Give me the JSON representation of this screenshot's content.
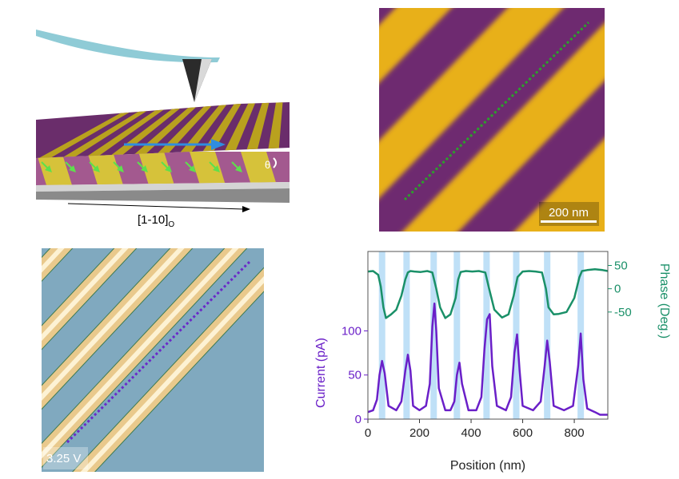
{
  "schematic": {
    "direction_label": "[1-10]",
    "direction_subscript": "O",
    "angle_label": "θ",
    "colors": {
      "cantilever": "#8fcbd6",
      "tip": "#2a2a2a",
      "stripe_a": "#b9a11e",
      "stripe_b": "#6a2d6b",
      "arrow": "#2f8de0",
      "polar_arrow": "#5ee04c",
      "substrate": "#bfbfbf",
      "substrate_dark": "#8a8a8a"
    }
  },
  "pfm_map": {
    "scale_bar_label": "200 nm",
    "colors": {
      "domain_light": "#e8b019",
      "domain_dark": "#6e2a6f",
      "line": "#2ca02c"
    }
  },
  "cafm_map": {
    "bias_label": "3.25 V",
    "colors": {
      "background": "#80a9bf",
      "stripe": "#e9c98c",
      "stripe_core": "#fff6dc",
      "line": "#6a2bc8"
    }
  },
  "chart_data": {
    "type": "line",
    "xlabel": "Position (nm)",
    "ylabel": "Current (pA)",
    "ylabel_right": "Phase (Deg.)",
    "xlim": [
      0,
      930
    ],
    "x_ticks": [
      0,
      200,
      400,
      600,
      800
    ],
    "ylim": [
      0,
      190
    ],
    "y_ticks": [
      0,
      50,
      100
    ],
    "ylim_right": [
      -280,
      80
    ],
    "y_ticks_right": [
      50,
      0,
      -50
    ],
    "highlight_bands": [
      55,
      150,
      255,
      345,
      460,
      575,
      695,
      825
    ],
    "band_color": "#bfe0f7",
    "series": [
      {
        "axis": "left",
        "color": "#6a1fc8",
        "x": [
          0,
          20,
          35,
          45,
          55,
          65,
          80,
          110,
          130,
          145,
          155,
          165,
          175,
          200,
          225,
          240,
          250,
          258,
          265,
          275,
          300,
          320,
          335,
          345,
          355,
          365,
          390,
          420,
          440,
          452,
          462,
          472,
          482,
          500,
          535,
          555,
          568,
          578,
          588,
          600,
          640,
          670,
          685,
          695,
          705,
          720,
          760,
          795,
          815,
          825,
          835,
          850,
          880,
          900,
          930
        ],
        "y": [
          8,
          10,
          22,
          50,
          66,
          52,
          15,
          10,
          20,
          55,
          73,
          55,
          15,
          10,
          15,
          40,
          105,
          131,
          100,
          35,
          10,
          10,
          20,
          50,
          64,
          40,
          10,
          10,
          25,
          80,
          113,
          119,
          60,
          15,
          10,
          25,
          75,
          96,
          55,
          15,
          10,
          20,
          60,
          89,
          65,
          15,
          10,
          15,
          60,
          97,
          45,
          12,
          8,
          5,
          5
        ]
      },
      {
        "axis": "right",
        "color": "#1a9068",
        "x": [
          0,
          20,
          40,
          50,
          60,
          70,
          90,
          110,
          130,
          145,
          155,
          165,
          180,
          205,
          230,
          250,
          265,
          280,
          300,
          320,
          340,
          350,
          360,
          380,
          405,
          430,
          455,
          470,
          490,
          520,
          545,
          565,
          580,
          600,
          625,
          650,
          675,
          690,
          700,
          720,
          740,
          770,
          800,
          820,
          830,
          850,
          880,
          910,
          930
        ],
        "y": [
          37,
          38,
          30,
          5,
          -40,
          -63,
          -55,
          -45,
          -15,
          20,
          35,
          38,
          37,
          36,
          38,
          35,
          0,
          -40,
          -63,
          -55,
          -20,
          20,
          36,
          38,
          37,
          38,
          35,
          0,
          -45,
          -62,
          -55,
          -15,
          25,
          37,
          38,
          37,
          35,
          0,
          -40,
          -55,
          -54,
          -50,
          -20,
          25,
          38,
          40,
          42,
          40,
          38
        ]
      }
    ]
  }
}
